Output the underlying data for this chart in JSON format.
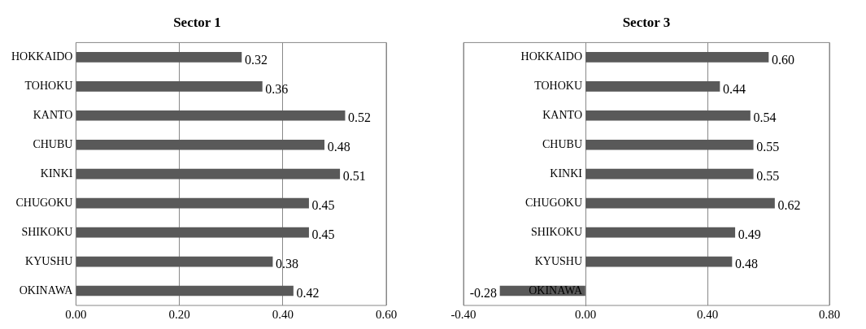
{
  "chart_data": [
    {
      "type": "bar",
      "orientation": "horizontal",
      "title": "Sector 1",
      "categories": [
        "HOKKAIDO",
        "TOHOKU",
        "KANTO",
        "CHUBU",
        "KINKI",
        "CHUGOKU",
        "SHIKOKU",
        "KYUSHU",
        "OKINAWA"
      ],
      "values": [
        0.32,
        0.36,
        0.52,
        0.48,
        0.51,
        0.45,
        0.45,
        0.38,
        0.42
      ],
      "value_labels": [
        "0.32",
        "0.36",
        "0.52",
        "0.48",
        "0.51",
        "0.45",
        "0.45",
        "0.38",
        "0.42"
      ],
      "color": "#595959",
      "xlim": [
        0,
        0.6
      ],
      "xticks": [
        {
          "value": 0,
          "label": "0.00"
        },
        {
          "value": 0.2,
          "label": "0.20"
        },
        {
          "value": 0.4,
          "label": "0.40"
        },
        {
          "value": 0.6,
          "label": "0.60"
        }
      ],
      "grid": "x",
      "legend": false
    },
    {
      "type": "bar",
      "orientation": "horizontal",
      "title": "Sector 3",
      "categories": [
        "HOKKAIDO",
        "TOHOKU",
        "KANTO",
        "CHUBU",
        "KINKI",
        "CHUGOKU",
        "SHIKOKU",
        "KYUSHU",
        "OKINAWA"
      ],
      "values": [
        0.6,
        0.44,
        0.54,
        0.55,
        0.55,
        0.62,
        0.49,
        0.48,
        -0.28
      ],
      "value_labels": [
        "0.60",
        "0.44",
        "0.54",
        "0.55",
        "0.55",
        "0.62",
        "0.49",
        "0.48",
        "-0.28"
      ],
      "color": "#595959",
      "xlim": [
        -0.4,
        0.8
      ],
      "xticks": [
        {
          "value": -0.4,
          "label": "-0.40"
        },
        {
          "value": 0,
          "label": "0.00"
        },
        {
          "value": 0.4,
          "label": "0.40"
        },
        {
          "value": 0.8,
          "label": "0.80"
        }
      ],
      "grid": "x",
      "legend": false
    }
  ]
}
